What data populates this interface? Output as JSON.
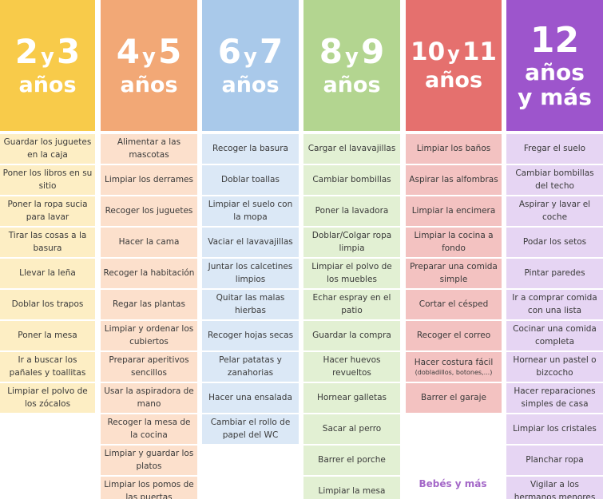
{
  "columns": [
    {
      "nums": "2",
      "nums2": "3",
      "y": "y",
      "label": "años",
      "extra": "",
      "header_color": "#f8cb4a",
      "item_color": "#fdeec4",
      "items": [
        {
          "text": "Guardar los juguetes en la caja"
        },
        {
          "text": "Poner los libros en su sitio"
        },
        {
          "text": "Poner la ropa sucia para lavar"
        },
        {
          "text": "Tirar las cosas a la basura"
        },
        {
          "text": "Llevar la leña"
        },
        {
          "text": "Doblar los trapos"
        },
        {
          "text": "Poner la mesa"
        },
        {
          "text": "Ir a buscar los pañales y toallitas"
        },
        {
          "text": "Limpiar el polvo de los zócalos"
        }
      ]
    },
    {
      "nums": "4",
      "nums2": "5",
      "y": "y",
      "label": "años",
      "extra": "",
      "header_color": "#f2a876",
      "item_color": "#fce0cc",
      "items": [
        {
          "text": "Alimentar a las mascotas"
        },
        {
          "text": "Limpiar los derrames"
        },
        {
          "text": "Recoger los juguetes"
        },
        {
          "text": "Hacer la cama"
        },
        {
          "text": "Recoger la habitación"
        },
        {
          "text": "Regar las plantas"
        },
        {
          "text": "Limpiar y ordenar los cubiertos"
        },
        {
          "text": "Preparar aperitivos sencillos"
        },
        {
          "text": "Usar la aspiradora de mano"
        },
        {
          "text": "Recoger la mesa de la cocina"
        },
        {
          "text": "Limpiar y guardar los platos"
        },
        {
          "text": "Limpiar los pomos de las puertas"
        }
      ]
    },
    {
      "nums": "6",
      "nums2": "7",
      "y": "y",
      "label": "años",
      "extra": "",
      "header_color": "#a9c9ea",
      "item_color": "#dbe8f6",
      "items": [
        {
          "text": "Recoger la basura"
        },
        {
          "text": "Doblar toallas"
        },
        {
          "text": "Limpiar el suelo con la mopa"
        },
        {
          "text": "Vaciar el lavavajillas"
        },
        {
          "text": "Juntar los calcetines limpios"
        },
        {
          "text": "Quitar las malas hierbas"
        },
        {
          "text": "Recoger hojas secas"
        },
        {
          "text": "Pelar patatas y zanahorias"
        },
        {
          "text": "Hacer una ensalada"
        },
        {
          "text": "Cambiar el rollo de papel del WC"
        }
      ]
    },
    {
      "nums": "8",
      "nums2": "9",
      "y": "y",
      "label": "años",
      "extra": "",
      "header_color": "#b3d590",
      "item_color": "#e2f0d3",
      "items": [
        {
          "text": "Cargar el lavavajillas"
        },
        {
          "text": "Cambiar bombillas"
        },
        {
          "text": "Poner la lavadora"
        },
        {
          "text": "Doblar/Colgar ropa limpia"
        },
        {
          "text": "Limpiar el polvo de los muebles"
        },
        {
          "text": "Echar espray en el patio"
        },
        {
          "text": "Guardar la compra"
        },
        {
          "text": "Hacer huevos revueltos"
        },
        {
          "text": "Hornear galletas"
        },
        {
          "text": "Sacar al perro"
        },
        {
          "text": "Barrer el porche"
        },
        {
          "text": "Limpiar la mesa"
        }
      ]
    },
    {
      "nums": "10",
      "nums2": "11",
      "y": "y",
      "label": "años",
      "extra": "",
      "header_color": "#e5706e",
      "item_color": "#f3c2c1",
      "items": [
        {
          "text": "Limpiar los baños"
        },
        {
          "text": "Aspirar las alfombras"
        },
        {
          "text": "Limpiar la encimera"
        },
        {
          "text": "Limpiar la cocina a fondo"
        },
        {
          "text": "Preparar una comida simple"
        },
        {
          "text": "Cortar el césped"
        },
        {
          "text": "Recoger el correo"
        },
        {
          "text": "Hacer costura fácil",
          "note": "(dobladillos, botones,...)"
        },
        {
          "text": "Barrer el garaje"
        }
      ]
    },
    {
      "nums": "12",
      "nums2": "",
      "y": "",
      "label": "años",
      "extra": "y más",
      "header_color": "#9d55cc",
      "item_color": "#e6d5f3",
      "items": [
        {
          "text": "Fregar el suelo"
        },
        {
          "text": "Cambiar bombillas del techo"
        },
        {
          "text": "Aspirar y lavar el coche"
        },
        {
          "text": "Podar los setos"
        },
        {
          "text": "Pintar paredes"
        },
        {
          "text": "Ir a comprar comida con una lista"
        },
        {
          "text": "Cocinar una comida completa"
        },
        {
          "text": "Hornear un pastel o bizcocho"
        },
        {
          "text": "Hacer reparaciones simples de casa"
        },
        {
          "text": "Limpiar los cristales"
        },
        {
          "text": "Planchar ropa"
        },
        {
          "text": "Vigilar a los hermanos menores"
        }
      ]
    }
  ],
  "brand": "Bebés y más"
}
